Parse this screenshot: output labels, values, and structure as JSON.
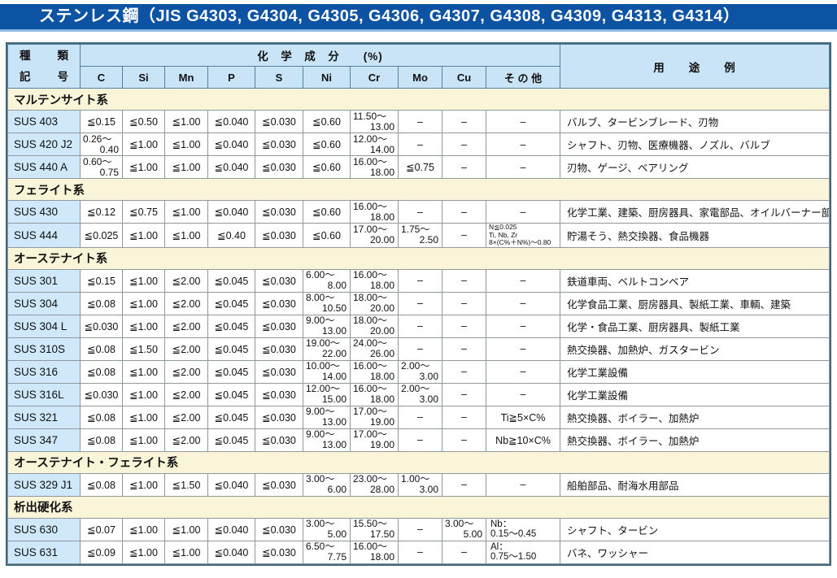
{
  "title": "ステンレス鋼（JIS G4303, G4304, G4305, G4306, G4307, G4308, G4309, G4313, G4314）",
  "colors": {
    "titlebar_bg": "#0d53a4",
    "titlebar_underline": "#8cb8e0",
    "header_bg": "#c9e4f6",
    "code_cell_bg": "#cfe9fb",
    "section_bg": "#faf5d9",
    "outer_border": "#41677b",
    "inner_border": "#8f989f"
  },
  "table": {
    "header": {
      "kind_line1": "種　類",
      "kind_line2": "記　号",
      "chem_title": "化　学　成　分　　(%)",
      "usage": "用　　途　　例",
      "elements": [
        "C",
        "Si",
        "Mn",
        "P",
        "S",
        "Ni",
        "Cr",
        "Mo",
        "Cu",
        "そ の 他"
      ]
    },
    "sections": [
      {
        "name": "マルテンサイト系",
        "rows": [
          {
            "code": "SUS 403",
            "cells": [
              "≦0.15",
              "≦0.50",
              "≦1.00",
              "≦0.040",
              "≦0.030",
              "≦0.60",
              [
                "11.50～",
                "13.00"
              ],
              "–",
              "–",
              "–"
            ],
            "usage": "バルブ、タービンブレード、刃物"
          },
          {
            "code": "SUS 420 J2",
            "cells": [
              [
                "0.26～",
                "0.40"
              ],
              "≦1.00",
              "≦1.00",
              "≦0.040",
              "≦0.030",
              "≦0.60",
              [
                "12.00～",
                "14.00"
              ],
              "–",
              "–",
              "–"
            ],
            "usage": "シャフト、刃物、医療機器、ノズル、バルブ"
          },
          {
            "code": "SUS 440 A",
            "cells": [
              [
                "0.60～",
                "0.75"
              ],
              "≦1.00",
              "≦1.00",
              "≦0.040",
              "≦0.030",
              "≦0.60",
              [
                "16.00～",
                "18.00"
              ],
              "≦0.75",
              "–",
              "–"
            ],
            "usage": "刃物、ゲージ、ベアリング"
          }
        ]
      },
      {
        "name": "フェライト系",
        "rows": [
          {
            "code": "SUS 430",
            "cells": [
              "≦0.12",
              "≦0.75",
              "≦1.00",
              "≦0.040",
              "≦0.030",
              "≦0.60",
              [
                "16.00～",
                "18.00"
              ],
              "–",
              "–",
              "–"
            ],
            "usage": "化学工業、建築、厨房器具、家電部品、オイルバーナー部品"
          },
          {
            "code": "SUS 444",
            "cells": [
              "≦0.025",
              "≦1.00",
              "≦1.00",
              "≦0.40",
              "≦0.030",
              "≦0.60",
              [
                "17.00～",
                "20.00"
              ],
              [
                "1.75～",
                "2.50"
              ],
              "–",
              {
                "small": [
                  "N≦0.025",
                  "Ti, Nb, Zr",
                  "8×(C%＋N%)～0.80"
                ]
              }
            ],
            "usage": "貯湯そう、熱交換器、食品機器"
          }
        ]
      },
      {
        "name": "オーステナイト系",
        "rows": [
          {
            "code": "SUS 301",
            "cells": [
              "≦0.15",
              "≦1.00",
              "≦2.00",
              "≦0.045",
              "≦0.030",
              [
                "6.00～",
                "8.00"
              ],
              [
                "16.00～",
                "18.00"
              ],
              "–",
              "–",
              "–"
            ],
            "usage": "鉄道車両、ベルトコンベア"
          },
          {
            "code": "SUS 304",
            "cells": [
              "≦0.08",
              "≦1.00",
              "≦2.00",
              "≦0.045",
              "≦0.030",
              [
                "8.00～",
                "10.50"
              ],
              [
                "18.00～",
                "20.00"
              ],
              "–",
              "–",
              "–"
            ],
            "usage": "化学食品工業、厨房器具、製紙工業、車輌、建築"
          },
          {
            "code": "SUS 304 L",
            "cells": [
              "≦0.030",
              "≦1.00",
              "≦2.00",
              "≦0.045",
              "≦0.030",
              [
                "9.00～",
                "13.00"
              ],
              [
                "18.00～",
                "20.00"
              ],
              "–",
              "–",
              "–"
            ],
            "usage": "化学・食品工業、厨房器具、製紙工業"
          },
          {
            "code": "SUS 310S",
            "cells": [
              "≦0.08",
              "≦1.50",
              "≦2.00",
              "≦0.045",
              "≦0.030",
              [
                "19.00～",
                "22.00"
              ],
              [
                "24.00～",
                "26.00"
              ],
              "–",
              "–",
              "–"
            ],
            "usage": "熱交換器、加熱炉、ガスタービン"
          },
          {
            "code": "SUS 316",
            "cells": [
              "≦0.08",
              "≦1.00",
              "≦2.00",
              "≦0.045",
              "≦0.030",
              [
                "10.00～",
                "14.00"
              ],
              [
                "16.00～",
                "18.00"
              ],
              [
                "2.00～",
                "3.00"
              ],
              "–",
              "–"
            ],
            "usage": "化学工業設備"
          },
          {
            "code": "SUS 316L",
            "cells": [
              "≦0.030",
              "≦1.00",
              "≦2.00",
              "≦0.045",
              "≦0.030",
              [
                "12.00～",
                "15.00"
              ],
              [
                "16.00～",
                "18.00"
              ],
              [
                "2.00～",
                "3.00"
              ],
              "–",
              "–"
            ],
            "usage": "化学工業設備"
          },
          {
            "code": "SUS 321",
            "cells": [
              "≦0.08",
              "≦1.00",
              "≦2.00",
              "≦0.045",
              "≦0.030",
              [
                "9.00～",
                "13.00"
              ],
              [
                "17.00～",
                "19.00"
              ],
              "–",
              "–",
              "Ti≧5×C%"
            ],
            "usage": "熱交換器、ボイラー、加熱炉"
          },
          {
            "code": "SUS 347",
            "cells": [
              "≦0.08",
              "≦1.00",
              "≦2.00",
              "≦0.045",
              "≦0.030",
              [
                "9.00～",
                "13.00"
              ],
              [
                "17.00～",
                "19.00"
              ],
              "–",
              "–",
              "Nb≧10×C%"
            ],
            "usage": "熱交換器、ボイラー、加熱炉"
          }
        ]
      },
      {
        "name": "オーステナイト・フェライト系",
        "rows": [
          {
            "code": "SUS 329 J1",
            "cells": [
              "≦0.08",
              "≦1.00",
              "≦1.50",
              "≦0.040",
              "≦0.030",
              [
                "3.00～",
                "6.00"
              ],
              [
                "23.00～",
                "28.00"
              ],
              [
                "1.00～",
                "3.00"
              ],
              "–",
              "–"
            ],
            "usage": "船舶部品、耐海水用部品"
          }
        ]
      },
      {
        "name": "析出硬化系",
        "rows": [
          {
            "code": "SUS 630",
            "cells": [
              "≦0.07",
              "≦1.00",
              "≦1.00",
              "≦0.040",
              "≦0.030",
              [
                "3.00～",
                "5.00"
              ],
              [
                "15.50～",
                "17.50"
              ],
              "–",
              [
                "3.00～",
                "5.00"
              ],
              {
                "left": [
                  "Nb：",
                  "0.15～0.45"
                ]
              }
            ],
            "usage": "シャフト、タービン"
          },
          {
            "code": "SUS 631",
            "cells": [
              "≦0.09",
              "≦1.00",
              "≦1.00",
              "≦0.040",
              "≦0.030",
              [
                "6.50～",
                "7.75"
              ],
              [
                "16.00～",
                "18.00"
              ],
              "–",
              "–",
              {
                "left": [
                  "Al：",
                  "0.75～1.50"
                ]
              }
            ],
            "usage": "バネ、ワッシャー"
          }
        ]
      }
    ]
  }
}
